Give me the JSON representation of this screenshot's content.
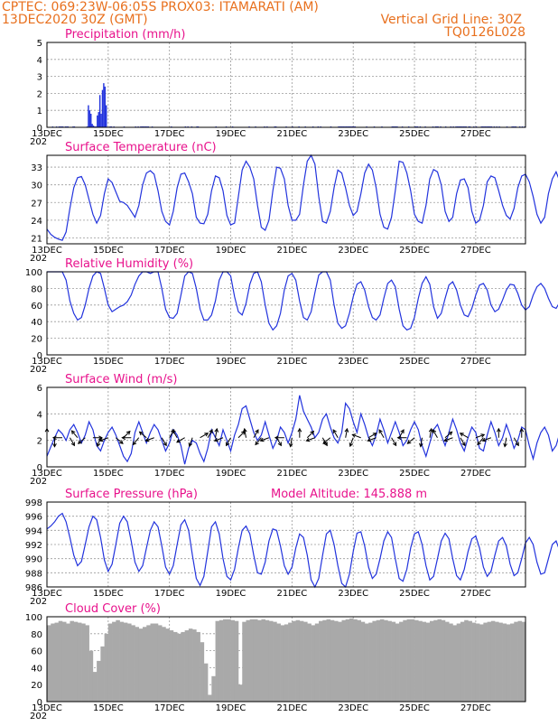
{
  "header": {
    "left_line1": "CPTEC:   069:23W-06:05S   PROX03: ITAMARATI (AM)",
    "left_line2": "13DEC2020 30Z (GMT)",
    "right_line2": "Vertical Grid Line: 30Z",
    "right_line3": "TQ0126L028"
  },
  "x_axis": {
    "labels": [
      "13DEC",
      "15DEC",
      "17DEC",
      "19DEC",
      "21DEC",
      "23DEC",
      "25DEC",
      "27DEC"
    ],
    "start_fragment": "202"
  },
  "colors": {
    "line": "#2233dd",
    "bar": "#2233dd",
    "cloud": "#a9a9a9",
    "title": "#e8128c",
    "header": "#e8701e"
  },
  "chart_data": [
    {
      "type": "bar",
      "title": "Precipitation (mm/h)",
      "ylim": [
        0,
        5
      ],
      "yticks": [
        "0",
        "1",
        "2",
        "3",
        "4",
        "5"
      ],
      "x_hours": [
        4,
        7,
        9,
        10,
        11,
        12,
        14,
        15,
        16,
        20,
        21,
        31,
        32,
        33,
        34,
        35,
        36,
        37,
        38,
        39,
        40,
        41,
        42,
        43,
        44,
        45,
        46,
        49,
        50,
        52,
        60,
        69,
        71,
        73,
        74,
        75,
        76,
        77,
        78,
        79,
        82,
        97,
        108,
        110,
        113,
        117,
        118,
        132,
        140,
        145,
        158,
        163,
        170,
        172,
        178,
        179,
        187,
        192,
        197,
        202,
        208,
        212,
        214,
        222,
        228,
        229,
        230,
        231,
        232,
        233,
        234,
        235,
        236,
        237,
        238,
        239,
        240,
        241,
        250,
        256,
        262,
        270,
        271,
        272,
        273,
        274,
        278,
        283,
        288,
        289,
        290,
        292,
        296,
        302,
        304,
        305,
        306,
        308,
        312,
        316,
        318,
        320,
        321,
        322,
        323,
        324,
        325,
        326,
        327,
        328,
        330,
        331,
        334,
        336,
        340,
        341,
        342,
        343,
        344,
        345,
        346,
        347,
        348,
        350,
        352,
        354,
        360,
        364,
        365,
        366,
        367,
        370,
        372,
        374
      ],
      "values": [
        0.05,
        0.05,
        0.05,
        0.05,
        0.05,
        0.05,
        0.05,
        0.05,
        0.05,
        0.05,
        0.05,
        0.05,
        1.3,
        1.0,
        0.8,
        0.2,
        0.1,
        0.05,
        0.05,
        0.7,
        0.9,
        1.9,
        0.8,
        2.2,
        2.6,
        2.4,
        1.3,
        0.05,
        0.05,
        0.05,
        0.05,
        0.05,
        0.05,
        0.05,
        0.05,
        0.05,
        0.05,
        0.05,
        0.05,
        0.05,
        0.05,
        0.05,
        0.05,
        0.05,
        0.05,
        0.05,
        0.05,
        0.05,
        0.05,
        0.05,
        0.05,
        0.05,
        0.05,
        0.05,
        0.05,
        0.05,
        0.05,
        0.05,
        0.05,
        0.05,
        0.05,
        0.05,
        0.05,
        0.05,
        0.05,
        0.05,
        0.05,
        0.05,
        0.05,
        0.05,
        0.05,
        0.05,
        0.05,
        0.05,
        0.05,
        0.05,
        0.05,
        0.05,
        0.05,
        0.05,
        0.05,
        0.05,
        0.05,
        0.05,
        0.05,
        0.05,
        0.05,
        0.05,
        0.05,
        0.05,
        0.05,
        0.05,
        0.05,
        0.05,
        0.05,
        0.05,
        0.05,
        0.05,
        0.05,
        0.05,
        0.05,
        0.05,
        0.05,
        0.05,
        0.05,
        0.05,
        0.05,
        0.05,
        0.05,
        0.05,
        0.05,
        0.05,
        0.05,
        0.05,
        0.05,
        0.05,
        0.05,
        0.05,
        0.05,
        0.05,
        0.05,
        0.05,
        0.05,
        0.05,
        0.05,
        0.05,
        0.05,
        0.05,
        0.05,
        0.05,
        0.05,
        0.05,
        0.05,
        0.05
      ]
    },
    {
      "type": "line",
      "title": "Surface Temperature (nC)",
      "ylim": [
        20,
        35
      ],
      "yticks": [
        "21",
        "24",
        "27",
        "30",
        "33"
      ],
      "ytick_values": [
        21,
        24,
        27,
        30,
        33
      ],
      "x_step_hours": 3,
      "values": [
        22.5,
        21.6,
        21.1,
        20.8,
        20.6,
        22.0,
        26.0,
        29.5,
        31.2,
        31.4,
        30.0,
        27.5,
        25.0,
        23.5,
        24.8,
        28.5,
        31.0,
        30.4,
        28.8,
        27.2,
        27.0,
        26.5,
        25.5,
        24.5,
        26.5,
        30.0,
        32.0,
        32.4,
        31.8,
        29.0,
        25.5,
        23.8,
        23.2,
        25.5,
        29.5,
        31.8,
        32.0,
        30.5,
        28.5,
        24.5,
        23.5,
        23.4,
        25.0,
        29.0,
        31.5,
        31.2,
        29.0,
        24.8,
        23.2,
        23.5,
        28.0,
        32.5,
        34.0,
        33.0,
        31.0,
        26.5,
        22.8,
        22.3,
        24.0,
        29.0,
        33.0,
        32.8,
        31.0,
        26.5,
        24.0,
        24.0,
        25.0,
        30.0,
        34.0,
        35.0,
        33.5,
        28.0,
        23.8,
        23.5,
        25.5,
        29.5,
        32.5,
        32.0,
        29.5,
        26.5,
        24.8,
        25.5,
        28.5,
        32.0,
        33.5,
        32.5,
        29.5,
        25.0,
        22.8,
        22.5,
        24.5,
        29.0,
        34.0,
        33.8,
        32.0,
        29.0,
        25.0,
        23.8,
        23.5,
        26.5,
        31.0,
        32.6,
        32.2,
        30.0,
        25.5,
        23.8,
        24.5,
        28.5,
        30.8,
        31.0,
        29.5,
        25.5,
        23.5,
        24.0,
        26.5,
        30.5,
        31.5,
        31.2,
        29.0,
        26.5,
        24.8,
        24.2,
        26.0,
        29.5,
        31.5,
        31.8,
        30.5,
        28.0,
        25.0,
        23.5,
        24.5,
        28.5,
        31.0,
        32.2,
        30.5,
        28.5,
        25.5,
        24.0,
        23.2,
        27.0,
        30.5,
        31.0,
        31.2
      ]
    },
    {
      "type": "line",
      "title": "Relative Humidity (%)",
      "ylim": [
        0,
        100
      ],
      "yticks": [
        "0",
        "20",
        "40",
        "60",
        "80",
        "100"
      ],
      "ytick_values": [
        0,
        20,
        40,
        60,
        80,
        100
      ],
      "x_step_hours": 3,
      "values": [
        100,
        100,
        100,
        100,
        100,
        90,
        65,
        50,
        42,
        45,
        60,
        80,
        95,
        100,
        98,
        80,
        60,
        52,
        55,
        58,
        60,
        64,
        72,
        85,
        95,
        100,
        100,
        98,
        100,
        100,
        80,
        55,
        45,
        44,
        50,
        72,
        95,
        100,
        98,
        80,
        55,
        42,
        42,
        48,
        65,
        90,
        100,
        100,
        95,
        70,
        52,
        48,
        62,
        85,
        98,
        100,
        88,
        60,
        38,
        30,
        35,
        50,
        78,
        95,
        98,
        90,
        65,
        45,
        42,
        52,
        75,
        96,
        100,
        100,
        90,
        60,
        38,
        32,
        35,
        50,
        70,
        85,
        88,
        78,
        58,
        45,
        42,
        48,
        68,
        86,
        90,
        82,
        55,
        35,
        30,
        32,
        45,
        68,
        86,
        94,
        85,
        58,
        44,
        50,
        68,
        84,
        88,
        78,
        60,
        48,
        46,
        56,
        72,
        84,
        86,
        78,
        60,
        52,
        55,
        66,
        78,
        85,
        84,
        74,
        60,
        54,
        58,
        72,
        82,
        86,
        80,
        68,
        58,
        56,
        64,
        74,
        80,
        76,
        68,
        60,
        56,
        50,
        48,
        47,
        47,
        48
      ]
    },
    {
      "type": "line",
      "title": "Surface Wind (m/s)",
      "ylim": [
        0,
        6
      ],
      "yticks": [
        "0",
        "2",
        "4",
        "6"
      ],
      "ytick_values": [
        0,
        2,
        4,
        6
      ],
      "x_step_hours": 3,
      "values": [
        0.8,
        1.5,
        2.2,
        2.8,
        2.5,
        2.0,
        2.8,
        3.2,
        2.6,
        1.8,
        2.4,
        3.4,
        2.8,
        1.6,
        1.2,
        2.0,
        2.6,
        3.0,
        2.4,
        1.6,
        0.8,
        0.4,
        1.0,
        2.6,
        3.4,
        2.6,
        1.8,
        2.6,
        3.2,
        2.8,
        2.0,
        1.2,
        1.8,
        2.8,
        2.4,
        1.6,
        0.2,
        1.4,
        2.0,
        1.8,
        1.0,
        0.4,
        1.4,
        2.8,
        2.2,
        1.6,
        2.8,
        2.0,
        1.2,
        2.4,
        3.2,
        4.4,
        4.6,
        3.6,
        2.6,
        2.0,
        2.4,
        3.4,
        2.4,
        1.4,
        2.0,
        3.0,
        2.6,
        1.8,
        2.6,
        3.6,
        5.4,
        4.2,
        3.6,
        3.0,
        2.2,
        2.6,
        3.6,
        4.0,
        3.0,
        2.2,
        1.8,
        2.6,
        4.8,
        4.4,
        3.4,
        2.6,
        4.0,
        3.2,
        2.2,
        1.6,
        2.4,
        3.6,
        2.8,
        1.8,
        2.6,
        3.4,
        2.6,
        1.6,
        2.0,
        2.8,
        3.4,
        2.8,
        1.6,
        0.8,
        1.8,
        2.8,
        3.2,
        2.4,
        1.6,
        2.6,
        3.6,
        2.8,
        1.8,
        1.2,
        2.2,
        3.0,
        2.6,
        1.4,
        1.2,
        2.4,
        3.4,
        2.6,
        1.6,
        2.2,
        3.2,
        2.4,
        1.4,
        2.0,
        3.0,
        2.8,
        1.6,
        0.6,
        1.8,
        2.6,
        3.0,
        2.4,
        1.2,
        1.6,
        2.6,
        3.0,
        2.2,
        1.6,
        2.8,
        2.6,
        2.0,
        1.6,
        0.6,
        0.4,
        0.6
      ]
    },
    {
      "type": "line",
      "title": "Surface Pressure (hPa)",
      "annotation": "Model Altitude: 145.888  m",
      "ylim": [
        986,
        998
      ],
      "yticks": [
        "986",
        "988",
        "990",
        "992",
        "994",
        "996",
        "998"
      ],
      "ytick_values": [
        986,
        988,
        990,
        992,
        994,
        996,
        998
      ],
      "x_step_hours": 3,
      "values": [
        994.2,
        994.6,
        995.2,
        996.0,
        996.4,
        995.2,
        993.0,
        990.5,
        989.0,
        989.6,
        992.0,
        994.5,
        996.0,
        995.5,
        993.0,
        989.8,
        988.2,
        989.2,
        992.0,
        995.0,
        996.0,
        995.2,
        992.5,
        989.5,
        988.2,
        989.0,
        991.5,
        994.0,
        995.2,
        994.5,
        991.8,
        988.8,
        987.8,
        989.0,
        992.0,
        994.8,
        995.5,
        994.0,
        990.5,
        987.2,
        986.2,
        987.5,
        991.0,
        994.5,
        995.2,
        993.5,
        990.0,
        987.5,
        987.0,
        988.5,
        991.5,
        994.0,
        994.6,
        993.5,
        990.5,
        988.0,
        987.8,
        989.5,
        992.5,
        994.2,
        994.0,
        991.8,
        989.0,
        987.8,
        988.8,
        991.5,
        993.5,
        993.0,
        990.5,
        987.0,
        986.0,
        987.2,
        990.5,
        993.5,
        994.0,
        992.0,
        989.0,
        986.5,
        986.0,
        987.8,
        991.0,
        993.6,
        993.8,
        991.8,
        988.8,
        987.2,
        987.8,
        990.0,
        992.5,
        993.8,
        993.0,
        990.0,
        987.2,
        986.8,
        988.5,
        991.5,
        993.5,
        993.8,
        992.0,
        989.0,
        987.0,
        987.5,
        990.0,
        992.5,
        993.6,
        992.8,
        990.0,
        987.6,
        987.0,
        988.5,
        991.0,
        992.8,
        993.2,
        991.5,
        988.8,
        987.5,
        988.2,
        990.5,
        992.5,
        993.0,
        991.8,
        989.2,
        987.6,
        988.0,
        990.0,
        992.2,
        993.0,
        992.0,
        989.5,
        987.8,
        988.0,
        990.0,
        992.0,
        992.5,
        991.0,
        988.8,
        987.6,
        988.5,
        990.5,
        991.2,
        990.0,
        988.5,
        987.0,
        986.5
      ]
    },
    {
      "type": "bar",
      "title": "Cloud Cover (%)",
      "ylim": [
        0,
        100
      ],
      "yticks": [
        "0",
        "20",
        "40",
        "60",
        "80",
        "100"
      ],
      "ytick_values": [
        0,
        20,
        40,
        60,
        80,
        100
      ],
      "x_step_hours": 3,
      "values": [
        90,
        92,
        93,
        95,
        94,
        92,
        95,
        94,
        93,
        92,
        90,
        60,
        35,
        48,
        65,
        80,
        92,
        94,
        96,
        94,
        93,
        92,
        90,
        88,
        86,
        88,
        90,
        92,
        92,
        90,
        88,
        86,
        84,
        82,
        80,
        82,
        84,
        86,
        85,
        82,
        70,
        45,
        8,
        30,
        95,
        96,
        97,
        97,
        96,
        95,
        20,
        94,
        96,
        97,
        97,
        96,
        97,
        96,
        95,
        94,
        92,
        90,
        91,
        93,
        95,
        96,
        95,
        94,
        92,
        90,
        92,
        95,
        96,
        97,
        96,
        95,
        94,
        96,
        97,
        98,
        97,
        96,
        94,
        92,
        93,
        95,
        96,
        97,
        96,
        95,
        94,
        92,
        94,
        96,
        97,
        97,
        96,
        95,
        94,
        93,
        95,
        96,
        97,
        96,
        94,
        92,
        90,
        92,
        94,
        96,
        95,
        93,
        92,
        91,
        93,
        94,
        95,
        94,
        93,
        92,
        91,
        92,
        94,
        95,
        94,
        93,
        92,
        90,
        92,
        94,
        95,
        94,
        92,
        90,
        88,
        90,
        92,
        94,
        95,
        94,
        92,
        90,
        88,
        90,
        92,
        93
      ]
    }
  ]
}
